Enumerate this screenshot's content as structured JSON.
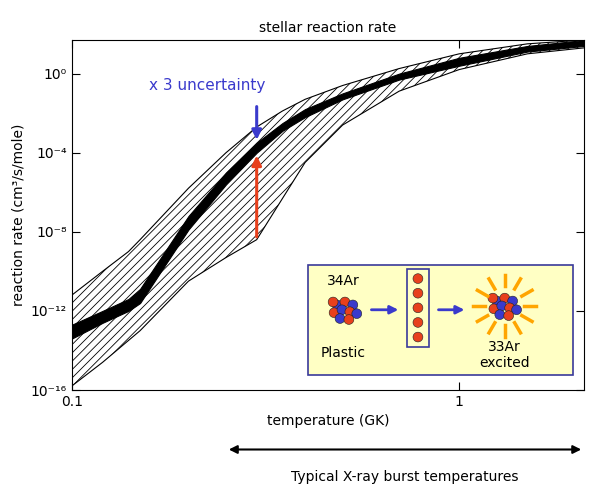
{
  "chart_data": {
    "type": "area",
    "title": "stellar reaction rate",
    "x_label": "temperature (GK)",
    "y_label": "reaction rate (cm³/s/mole)",
    "log": true,
    "xlim": [
      0.1,
      2.1
    ],
    "ylim": [
      1e-16,
      50
    ],
    "xticks": [
      0.1,
      1
    ],
    "yticks": [
      {
        "value": 1,
        "label": "10⁰"
      },
      {
        "value": 0.0001,
        "label": "10⁻⁴"
      },
      {
        "value": 1e-08,
        "label": "10⁻⁸"
      },
      {
        "value": 1e-12,
        "label": "10⁻¹²"
      },
      {
        "value": 1e-16,
        "label": "10⁻¹⁶"
      }
    ],
    "x": [
      0.1,
      0.12,
      0.14,
      0.15,
      0.2,
      0.25,
      0.3,
      0.35,
      0.4,
      0.5,
      0.7,
      1.0,
      1.5,
      2.1
    ],
    "series": [
      {
        "color": "#000000",
        "lower": [
          1.6e-16,
          2.5e-15,
          3.2e-14,
          1e-13,
          3.2e-11,
          5e-10,
          4e-09,
          5e-07,
          3.2e-05,
          0.0025,
          0.13,
          1.6,
          10,
          20
        ],
        "upper": [
          6.3e-12,
          1e-10,
          1e-09,
          4e-09,
          1.6e-06,
          0.0001,
          0.002,
          0.013,
          0.05,
          0.25,
          1.8,
          10,
          32,
          50
        ]
      },
      {
        "color": "#000000",
        "lower": [
          4e-14,
          2.5e-13,
          1e-12,
          2.5e-12,
          1.3e-08,
          2.5e-06,
          0.0001,
          0.0013,
          0.0063,
          0.05,
          0.5,
          2.5,
          13,
          25
        ],
        "upper": [
          2e-13,
          1e-12,
          4e-12,
          1.3e-11,
          6.3e-08,
          1e-05,
          0.00032,
          0.0032,
          0.016,
          0.1,
          1,
          6.3,
          25,
          50
        ]
      }
    ],
    "annotation": {
      "text": "x 3 uncertainty",
      "x": 0.3
    },
    "inset_labels": [
      "34Ar",
      "Plastic",
      "33Ar",
      "excited"
    ],
    "range": {
      "label": "Typical X-ray burst temperatures",
      "x": [
        0.25,
        2.1
      ]
    }
  }
}
